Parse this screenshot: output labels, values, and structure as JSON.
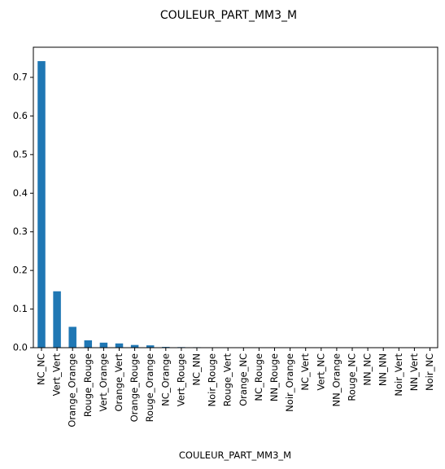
{
  "chart_data": {
    "type": "bar",
    "title": "COULEUR_PART_MM3_M",
    "xlabel": "COULEUR_PART_MM3_M",
    "ylabel": "",
    "categories": [
      "NC_NC",
      "Vert_Vert",
      "Orange_Orange",
      "Rouge_Rouge",
      "Vert_Orange",
      "Orange_Vert",
      "Orange_Rouge",
      "Rouge_Orange",
      "NC_Orange",
      "Vert_Rouge",
      "NC_NN",
      "Noir_Rouge",
      "Rouge_Vert",
      "Orange_NC",
      "NC_Rouge",
      "NN_Rouge",
      "Noir_Orange",
      "NC_Vert",
      "Vert_NC",
      "NN_Orange",
      "Rouge_NC",
      "NN_NC",
      "NN_NN",
      "Noir_Vert",
      "NN_Vert",
      "Noir_NC"
    ],
    "values": [
      0.742,
      0.146,
      0.054,
      0.019,
      0.013,
      0.011,
      0.007,
      0.006,
      0.002,
      0.0015,
      0.0012,
      0.001,
      0.001,
      0.0008,
      0.0007,
      0.0006,
      0.0005,
      0.0005,
      0.0004,
      0.0004,
      0.0003,
      0.0003,
      0.0002,
      0.0002,
      0.0001,
      0.0001
    ],
    "ylim": [
      0,
      0.778
    ],
    "yticks": [
      "0.0",
      "0.1",
      "0.2",
      "0.3",
      "0.4",
      "0.5",
      "0.6",
      "0.7"
    ],
    "bar_color": "#1f77b4",
    "grid": false,
    "legend": "none"
  }
}
